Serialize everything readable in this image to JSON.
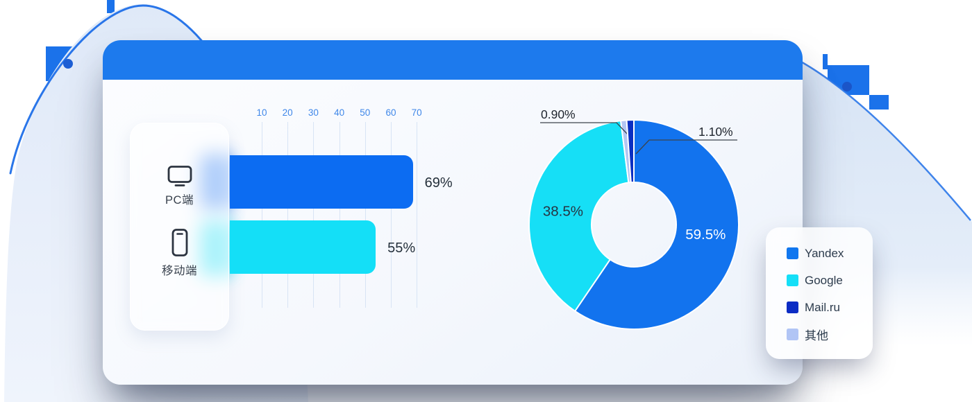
{
  "card": {
    "header_color": "#1d7aed"
  },
  "chart_data": [
    {
      "type": "bar",
      "orientation": "horizontal",
      "title": "",
      "categories": [
        "PC端",
        "移动端"
      ],
      "category_icons": [
        "desktop-icon",
        "mobile-icon"
      ],
      "values": [
        69,
        55
      ],
      "value_labels": [
        "69%",
        "55%"
      ],
      "colors": [
        "#0c6cf2",
        "#14dff7"
      ],
      "x_ticks": [
        10,
        20,
        30,
        40,
        50,
        60,
        70
      ],
      "xlim": [
        0,
        74
      ],
      "grid": true,
      "axis_tick_color": "#3f87e9"
    },
    {
      "type": "pie",
      "donut": true,
      "inner_radius_ratio": 0.4,
      "start_angle": "top",
      "direction": "clockwise",
      "slices": [
        {
          "name": "Yandex",
          "value": 59.5,
          "label": "59.5%",
          "color": "#1273ee",
          "label_position": "inside",
          "label_color": "#ffffff"
        },
        {
          "name": "Google",
          "value": 38.5,
          "label": "38.5%",
          "color": "#16dff6",
          "label_position": "inside",
          "label_color": "#273442"
        },
        {
          "name": "其他",
          "value": 0.9,
          "label": "0.90%",
          "color": "#b3c6f3",
          "label_position": "outside",
          "label_color": "#20262e"
        },
        {
          "name": "Mail.ru",
          "value": 1.1,
          "label": "1.10%",
          "color": "#0a2fc2",
          "label_position": "outside",
          "label_color": "#20262e"
        }
      ],
      "legend_position": "right"
    }
  ],
  "legend": {
    "items": [
      {
        "label": "Yandex",
        "color": "#1177ef"
      },
      {
        "label": "Google",
        "color": "#15dff7"
      },
      {
        "label": "Mail.ru",
        "color": "#0b2cc4"
      },
      {
        "label": "其他",
        "color": "#b1c5f5"
      }
    ]
  },
  "glow_colors": {
    "pc": "#2e7ef2",
    "mobile": "#20dff5"
  }
}
